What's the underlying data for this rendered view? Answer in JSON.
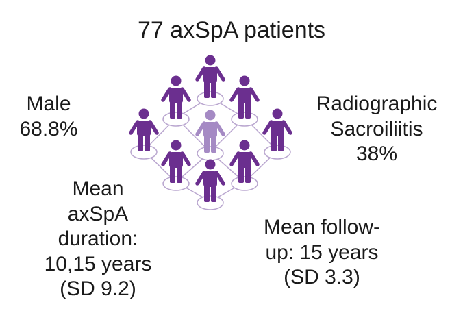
{
  "title": "77 axSpA patients",
  "stats": {
    "male": [
      "Male",
      "68.8%"
    ],
    "radiographic": [
      "Radiographic",
      "Sacroiliitis",
      "38%"
    ],
    "duration": [
      "Mean",
      "axSpA",
      "duration:",
      "10,15 years",
      "(SD 9.2)"
    ],
    "followup": [
      "Mean follow-",
      "up: 15 years",
      "(SD 3.3)"
    ]
  },
  "colors": {
    "person": "#6b2f8f",
    "person_center": "#a58ac4",
    "link": "#b9a6cf"
  },
  "icon": "person-icon"
}
